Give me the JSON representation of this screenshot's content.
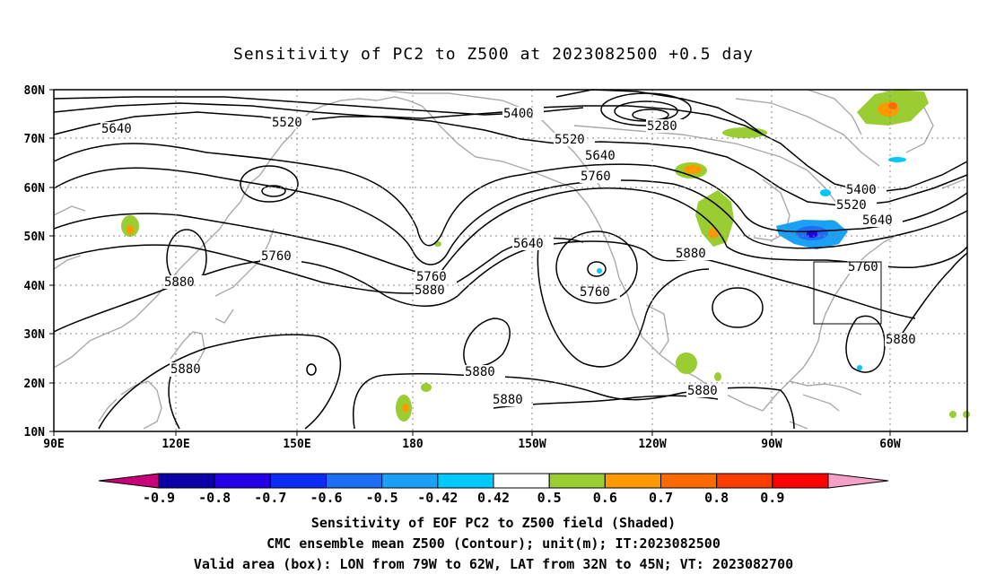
{
  "title": "Sensitivity of PC2 to Z500 at 2023082500 +0.5 day",
  "axes": {
    "lon_labels": [
      "90E",
      "120E",
      "150E",
      "180",
      "150W",
      "120W",
      "90W",
      "60W"
    ],
    "lat_labels": [
      "80N",
      "70N",
      "60N",
      "50N",
      "40N",
      "30N",
      "20N",
      "10N"
    ]
  },
  "contour_labels": [
    "5640",
    "5520",
    "5400",
    "5280",
    "5520",
    "5640",
    "5760",
    "5400",
    "5520",
    "5640",
    "5760",
    "5880",
    "5640",
    "5760",
    "5880",
    "5760",
    "5880",
    "5760",
    "5880",
    "5880",
    "5880",
    "5880",
    "5880"
  ],
  "colorbar": {
    "labels": [
      "-0.9",
      "-0.8",
      "-0.7",
      "-0.6",
      "-0.5",
      "-0.42",
      "0.42",
      "0.5",
      "0.6",
      "0.7",
      "0.8",
      "0.9"
    ],
    "colors": [
      "#c8007a",
      "#0b00a8",
      "#2400e8",
      "#0d2cf5",
      "#1e6ef5",
      "#1aa0f5",
      "#00c8f8",
      "#ffffff",
      "#9acd32",
      "#ff9900",
      "#ff6a00",
      "#ff3c00",
      "#ff0000",
      "#f5a0c8"
    ]
  },
  "captions": [
    "Sensitivity of EOF PC2 to Z500 field (Shaded)",
    "CMC ensemble mean Z500 (Contour); unit(m); IT:2023082500",
    "Valid area (box): LON from 79W to 62W, LAT from 32N to 45N; VT: 2023082700"
  ],
  "valid_box": {
    "lon_from": "79W",
    "lon_to": "62W",
    "lat_from": "32N",
    "lat_to": "45N"
  }
}
